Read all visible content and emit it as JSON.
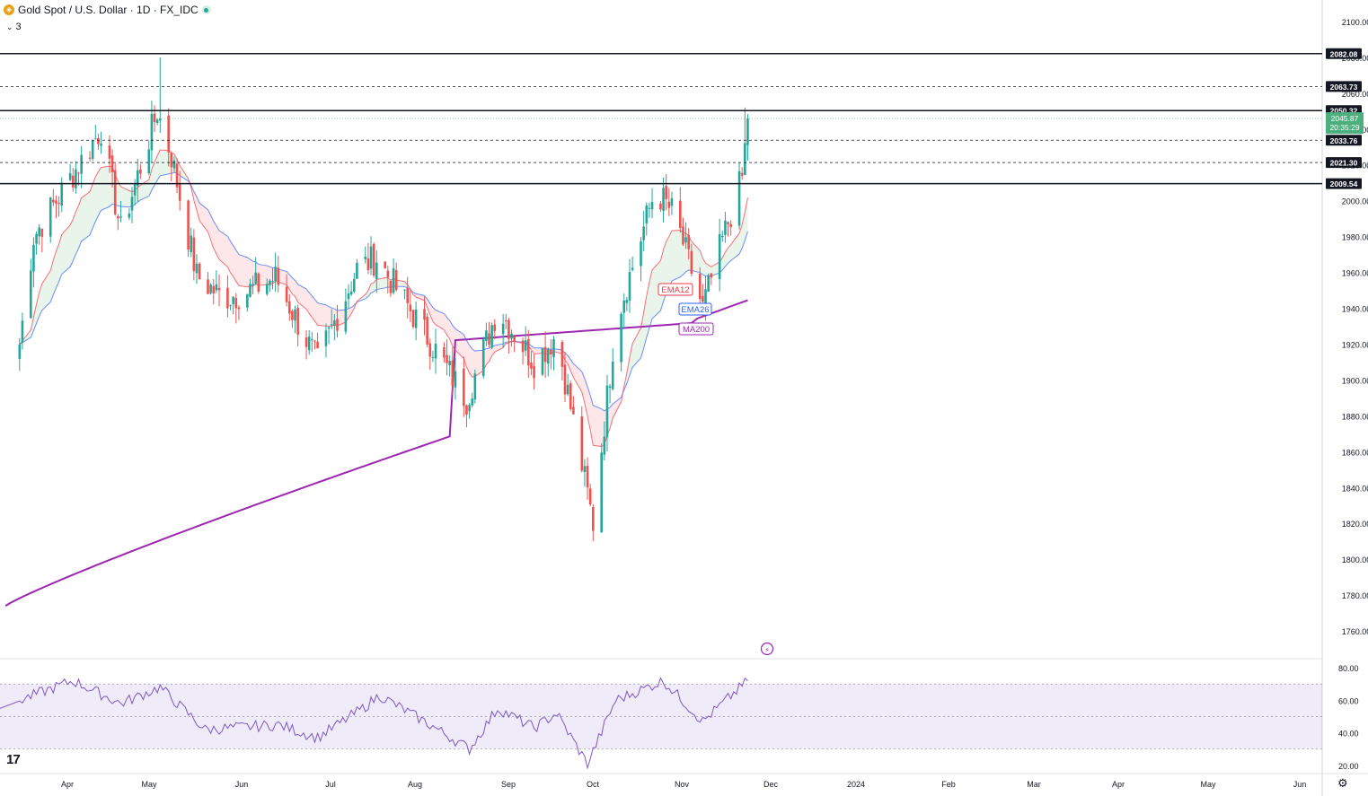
{
  "header": {
    "symbol_title": "Gold Spot / U.S. Dollar · 1D · FX_IDC",
    "indicators_toggle": "3",
    "symbol_icon": "gold-coin-icon",
    "status_icon": "market-open-dot-icon"
  },
  "colors": {
    "up": "#26a69a",
    "down": "#ef5350",
    "ema12": "#f23645",
    "ema26": "#2962ff",
    "ma200": "#9c27b0",
    "rsi": "#7e57c2",
    "last_price_bg": "#4caf7d"
  },
  "chart_data": {
    "type": "candlestick",
    "title": "Gold Spot / U.S. Dollar · 1D · FX_IDC",
    "price_axis": {
      "ticks": [
        "2100.00",
        "2080.00",
        "2060.00",
        "2040.00",
        "2020.00",
        "2000.00",
        "1980.00",
        "1960.00",
        "1940.00",
        "1920.00",
        "1900.00",
        "1880.00",
        "1860.00",
        "1840.00",
        "1820.00",
        "1800.00",
        "1780.00",
        "1760.00"
      ],
      "range": [
        1745,
        2112
      ]
    },
    "time_axis": {
      "labels": [
        "Apr",
        "May",
        "Jun",
        "Jul",
        "Aug",
        "Sep",
        "Oct",
        "Nov",
        "Dec",
        "2024",
        "Feb",
        "Mar",
        "Apr",
        "May",
        "Jun"
      ]
    },
    "horizontal_levels": [
      {
        "price": 2082.08,
        "label": "2082.08",
        "style": "solid"
      },
      {
        "price": 2063.73,
        "label": "2063.73",
        "style": "dashed"
      },
      {
        "price": 2050.32,
        "label": "2050.32",
        "style": "solid"
      },
      {
        "price": 2033.76,
        "label": "2033.76",
        "style": "dashed"
      },
      {
        "price": 2021.3,
        "label": "2021.30",
        "style": "dashed"
      },
      {
        "price": 2009.54,
        "label": "2009.54",
        "style": "solid"
      }
    ],
    "last_price": {
      "price": 2045.87,
      "label": "2045.87",
      "countdown": "20:35:29"
    },
    "key_closes": {
      "note": "",
      "points": [
        {
          "date": "Mar-15",
          "close": 1920
        },
        {
          "date": "Mar-20",
          "close": 1980
        },
        {
          "date": "Apr-05",
          "close": 2020
        },
        {
          "date": "Apr-13",
          "close": 2040
        },
        {
          "date": "Apr-20",
          "close": 1983
        },
        {
          "date": "May-03",
          "close": 2050
        },
        {
          "date": "May-08",
          "close": 2025
        },
        {
          "date": "May-17",
          "close": 1958
        },
        {
          "date": "May-26",
          "close": 1946
        },
        {
          "date": "Jun-02",
          "close": 1948
        },
        {
          "date": "Jun-14",
          "close": 1957
        },
        {
          "date": "Jun-29",
          "close": 1910
        },
        {
          "date": "Jul-13",
          "close": 1962
        },
        {
          "date": "Jul-20",
          "close": 1968
        },
        {
          "date": "Aug-03",
          "close": 1934
        },
        {
          "date": "Aug-21",
          "close": 1889
        },
        {
          "date": "Sep-01",
          "close": 1940
        },
        {
          "date": "Sep-14",
          "close": 1910
        },
        {
          "date": "Sep-22",
          "close": 1925
        },
        {
          "date": "Oct-05",
          "close": 1820
        },
        {
          "date": "Oct-13",
          "close": 1932
        },
        {
          "date": "Oct-27",
          "close": 2006
        },
        {
          "date": "Nov-03",
          "close": 1992
        },
        {
          "date": "Nov-13",
          "close": 1940
        },
        {
          "date": "Nov-20",
          "close": 1978
        },
        {
          "date": "Nov-27",
          "close": 2013
        },
        {
          "date": "Nov-29",
          "close": 2045.87
        }
      ]
    },
    "indicators": [
      {
        "name": "EMA12",
        "label": "EMA12"
      },
      {
        "name": "EMA26",
        "label": "EMA26"
      },
      {
        "name": "MA200",
        "label": "MA200"
      }
    ],
    "rsi": {
      "ticks": [
        "80.00",
        "60.00",
        "40.00",
        "20.00"
      ],
      "range": [
        15,
        85
      ],
      "band": [
        30,
        70
      ],
      "midline": 50,
      "points": [
        {
          "date": "Mar-15",
          "value": 60
        },
        {
          "date": "Apr-03",
          "value": 72
        },
        {
          "date": "Apr-20",
          "value": 58
        },
        {
          "date": "May-04",
          "value": 68
        },
        {
          "date": "May-20",
          "value": 42
        },
        {
          "date": "Jun-15",
          "value": 45
        },
        {
          "date": "Jun-29",
          "value": 37
        },
        {
          "date": "Jul-15",
          "value": 55
        },
        {
          "date": "Jul-21",
          "value": 63
        },
        {
          "date": "Aug-08",
          "value": 45
        },
        {
          "date": "Aug-22",
          "value": 30
        },
        {
          "date": "Sep-01",
          "value": 55
        },
        {
          "date": "Sep-14",
          "value": 43
        },
        {
          "date": "Sep-22",
          "value": 52
        },
        {
          "date": "Oct-03",
          "value": 21
        },
        {
          "date": "Oct-13",
          "value": 60
        },
        {
          "date": "Oct-30",
          "value": 72
        },
        {
          "date": "Nov-13",
          "value": 47
        },
        {
          "date": "Nov-29",
          "value": 72
        }
      ]
    }
  },
  "branding": {
    "logo": "17"
  }
}
